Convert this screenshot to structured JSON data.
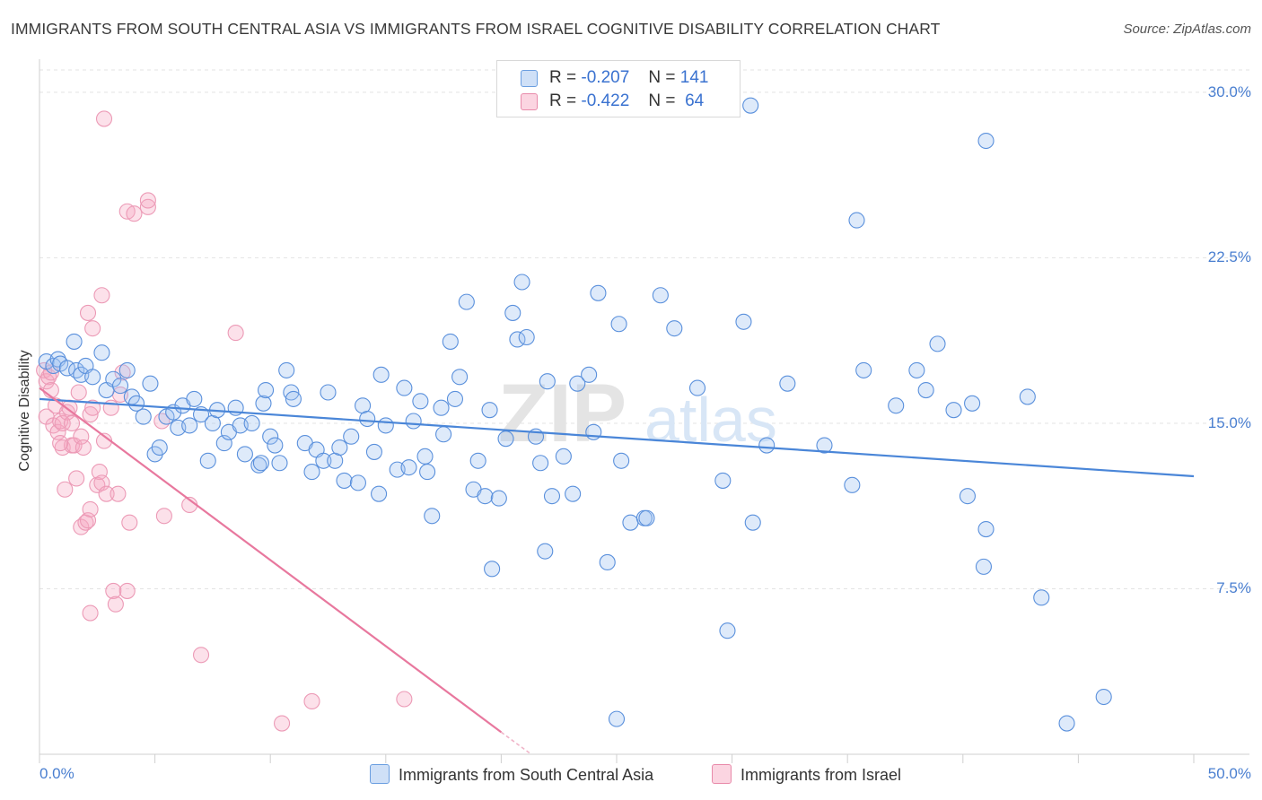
{
  "title": "IMMIGRANTS FROM SOUTH CENTRAL ASIA VS IMMIGRANTS FROM ISRAEL COGNITIVE DISABILITY CORRELATION CHART",
  "source": "Source: ZipAtlas.com",
  "watermark": "ZIPatlas",
  "legend": {
    "rows": [
      {
        "r_label": "R =",
        "r_value": "-0.207",
        "n_label": "N =",
        "n_value": "141",
        "color": "#a8c8f0"
      },
      {
        "r_label": "R =",
        "r_value": "-0.422",
        "n_label": "N =",
        "n_value": "64",
        "color": "#f5b8cc"
      }
    ]
  },
  "bottom_legend": [
    {
      "label": "Immigrants from South Central Asia",
      "color": "#a8c8f0"
    },
    {
      "label": "Immigrants from Israel",
      "color": "#f5b8cc"
    }
  ],
  "chart_data": {
    "type": "scatter",
    "title": "IMMIGRANTS FROM SOUTH CENTRAL ASIA VS IMMIGRANTS FROM ISRAEL COGNITIVE DISABILITY CORRELATION CHART",
    "xlabel": "",
    "ylabel": "Cognitive Disability",
    "xlim": [
      0,
      50
    ],
    "ylim": [
      0,
      31.5
    ],
    "x_tick_labels": [
      "0.0%",
      "50.0%"
    ],
    "y_ticks": [
      7.5,
      15.0,
      22.5,
      30.0
    ],
    "y_tick_labels": [
      "7.5%",
      "15.0%",
      "22.5%",
      "30.0%"
    ],
    "grid": "horizontal dashed",
    "legend_position": "top-center",
    "colors": {
      "series1": "#4a86d8",
      "series2": "#e8789e"
    },
    "series": [
      {
        "name": "Immigrants from South Central Asia",
        "trend": [
          [
            0,
            16.1
          ],
          [
            50,
            12.6
          ]
        ],
        "points": [
          [
            0.3,
            17.8
          ],
          [
            0.6,
            17.6
          ],
          [
            0.8,
            17.9
          ],
          [
            0.9,
            17.7
          ],
          [
            1.2,
            17.5
          ],
          [
            1.5,
            18.7
          ],
          [
            1.6,
            17.4
          ],
          [
            1.8,
            17.2
          ],
          [
            2.0,
            17.6
          ],
          [
            2.3,
            17.1
          ],
          [
            2.7,
            18.2
          ],
          [
            2.9,
            16.5
          ],
          [
            3.2,
            17.0
          ],
          [
            3.5,
            16.7
          ],
          [
            3.8,
            17.4
          ],
          [
            4.0,
            16.2
          ],
          [
            4.2,
            15.9
          ],
          [
            4.5,
            15.3
          ],
          [
            4.8,
            16.8
          ],
          [
            5.0,
            13.6
          ],
          [
            5.2,
            13.9
          ],
          [
            5.5,
            15.3
          ],
          [
            5.8,
            15.5
          ],
          [
            6.0,
            14.8
          ],
          [
            6.2,
            15.8
          ],
          [
            6.5,
            14.9
          ],
          [
            6.7,
            16.1
          ],
          [
            7.0,
            15.4
          ],
          [
            7.3,
            13.3
          ],
          [
            7.5,
            15.0
          ],
          [
            7.7,
            15.6
          ],
          [
            8.0,
            14.1
          ],
          [
            8.2,
            14.6
          ],
          [
            8.5,
            15.7
          ],
          [
            8.7,
            14.9
          ],
          [
            8.9,
            13.6
          ],
          [
            9.2,
            15.0
          ],
          [
            9.5,
            13.1
          ],
          [
            9.6,
            13.2
          ],
          [
            9.7,
            15.9
          ],
          [
            9.8,
            16.5
          ],
          [
            10.0,
            14.4
          ],
          [
            10.2,
            14.0
          ],
          [
            10.4,
            13.2
          ],
          [
            10.7,
            17.4
          ],
          [
            10.9,
            16.4
          ],
          [
            11.0,
            16.1
          ],
          [
            11.5,
            14.1
          ],
          [
            11.8,
            12.8
          ],
          [
            12.0,
            13.8
          ],
          [
            12.3,
            13.3
          ],
          [
            12.5,
            16.4
          ],
          [
            12.8,
            13.3
          ],
          [
            13.0,
            13.9
          ],
          [
            13.2,
            12.4
          ],
          [
            13.5,
            14.4
          ],
          [
            13.8,
            12.3
          ],
          [
            14.0,
            15.8
          ],
          [
            14.2,
            15.2
          ],
          [
            14.5,
            13.7
          ],
          [
            14.7,
            11.8
          ],
          [
            14.8,
            17.2
          ],
          [
            15.0,
            14.9
          ],
          [
            15.5,
            12.9
          ],
          [
            15.8,
            16.6
          ],
          [
            16.0,
            13.0
          ],
          [
            16.2,
            15.1
          ],
          [
            16.5,
            16.0
          ],
          [
            16.7,
            13.5
          ],
          [
            16.8,
            12.8
          ],
          [
            17.0,
            10.8
          ],
          [
            17.4,
            15.7
          ],
          [
            17.5,
            14.5
          ],
          [
            17.8,
            18.7
          ],
          [
            18.0,
            16.1
          ],
          [
            18.2,
            17.1
          ],
          [
            18.5,
            20.5
          ],
          [
            18.8,
            12.0
          ],
          [
            19.0,
            13.3
          ],
          [
            19.3,
            11.7
          ],
          [
            19.5,
            15.6
          ],
          [
            19.6,
            8.4
          ],
          [
            19.9,
            11.6
          ],
          [
            20.2,
            14.3
          ],
          [
            20.5,
            20.0
          ],
          [
            20.7,
            18.8
          ],
          [
            20.9,
            21.4
          ],
          [
            21.1,
            18.9
          ],
          [
            21.5,
            14.4
          ],
          [
            21.7,
            13.2
          ],
          [
            21.9,
            9.2
          ],
          [
            22.0,
            16.9
          ],
          [
            22.2,
            11.7
          ],
          [
            22.7,
            13.5
          ],
          [
            23.1,
            11.8
          ],
          [
            23.3,
            16.8
          ],
          [
            23.8,
            17.2
          ],
          [
            24.0,
            14.6
          ],
          [
            24.2,
            20.9
          ],
          [
            24.6,
            8.7
          ],
          [
            25.1,
            19.5
          ],
          [
            25.2,
            13.3
          ],
          [
            25.6,
            10.5
          ],
          [
            26.2,
            10.7
          ],
          [
            26.3,
            10.7
          ],
          [
            26.9,
            20.8
          ],
          [
            27.5,
            19.3
          ],
          [
            28.5,
            16.6
          ],
          [
            29.6,
            12.4
          ],
          [
            29.8,
            5.6
          ],
          [
            30.5,
            19.6
          ],
          [
            30.8,
            29.4
          ],
          [
            30.9,
            10.5
          ],
          [
            31.5,
            14.0
          ],
          [
            32.4,
            16.8
          ],
          [
            34.0,
            14.0
          ],
          [
            35.2,
            12.2
          ],
          [
            35.4,
            24.2
          ],
          [
            35.7,
            17.4
          ],
          [
            37.1,
            15.8
          ],
          [
            38.0,
            17.4
          ],
          [
            38.4,
            16.5
          ],
          [
            38.9,
            18.6
          ],
          [
            39.6,
            15.6
          ],
          [
            40.2,
            11.7
          ],
          [
            40.4,
            15.9
          ],
          [
            40.9,
            8.5
          ],
          [
            41.0,
            10.2
          ],
          [
            41.0,
            27.8
          ],
          [
            42.8,
            16.2
          ],
          [
            43.4,
            7.1
          ],
          [
            44.5,
            1.4
          ],
          [
            46.1,
            2.6
          ],
          [
            25.0,
            1.6
          ]
        ]
      },
      {
        "name": "Immigrants from Israel",
        "trend": [
          [
            0,
            16.6
          ],
          [
            20,
            1.0
          ]
        ],
        "trend_dashed_ext": [
          [
            20,
            1.0
          ],
          [
            21.3,
            0
          ]
        ],
        "points": [
          [
            0.2,
            17.4
          ],
          [
            0.3,
            16.9
          ],
          [
            0.3,
            15.3
          ],
          [
            0.4,
            17.1
          ],
          [
            0.5,
            17.3
          ],
          [
            0.6,
            14.9
          ],
          [
            0.7,
            15.8
          ],
          [
            0.8,
            14.6
          ],
          [
            0.9,
            15.1
          ],
          [
            1.0,
            13.9
          ],
          [
            1.0,
            15.0
          ],
          [
            1.1,
            12.0
          ],
          [
            1.2,
            15.5
          ],
          [
            1.3,
            15.7
          ],
          [
            1.4,
            14.0
          ],
          [
            1.5,
            14.0
          ],
          [
            1.6,
            12.5
          ],
          [
            1.7,
            16.4
          ],
          [
            1.8,
            14.4
          ],
          [
            1.8,
            10.3
          ],
          [
            1.9,
            13.9
          ],
          [
            2.0,
            10.5
          ],
          [
            2.1,
            10.6
          ],
          [
            2.1,
            20.0
          ],
          [
            2.2,
            11.1
          ],
          [
            2.2,
            15.4
          ],
          [
            2.2,
            6.4
          ],
          [
            2.3,
            19.3
          ],
          [
            2.3,
            15.7
          ],
          [
            2.5,
            12.2
          ],
          [
            2.6,
            12.8
          ],
          [
            2.7,
            12.3
          ],
          [
            2.7,
            20.8
          ],
          [
            2.8,
            14.2
          ],
          [
            2.8,
            28.8
          ],
          [
            2.9,
            11.8
          ],
          [
            3.1,
            15.7
          ],
          [
            3.2,
            7.4
          ],
          [
            3.3,
            6.8
          ],
          [
            3.4,
            11.8
          ],
          [
            3.5,
            16.3
          ],
          [
            3.6,
            17.3
          ],
          [
            3.8,
            7.4
          ],
          [
            3.8,
            24.6
          ],
          [
            3.9,
            10.5
          ],
          [
            4.1,
            24.5
          ],
          [
            4.7,
            24.8
          ],
          [
            4.7,
            25.1
          ],
          [
            5.3,
            15.1
          ],
          [
            5.4,
            10.8
          ],
          [
            6.5,
            11.3
          ],
          [
            7.0,
            4.5
          ],
          [
            8.5,
            19.1
          ],
          [
            10.5,
            1.4
          ],
          [
            11.8,
            2.4
          ],
          [
            15.8,
            2.5
          ],
          [
            0.5,
            16.5
          ],
          [
            1.4,
            15.0
          ],
          [
            0.9,
            14.1
          ]
        ]
      }
    ]
  }
}
